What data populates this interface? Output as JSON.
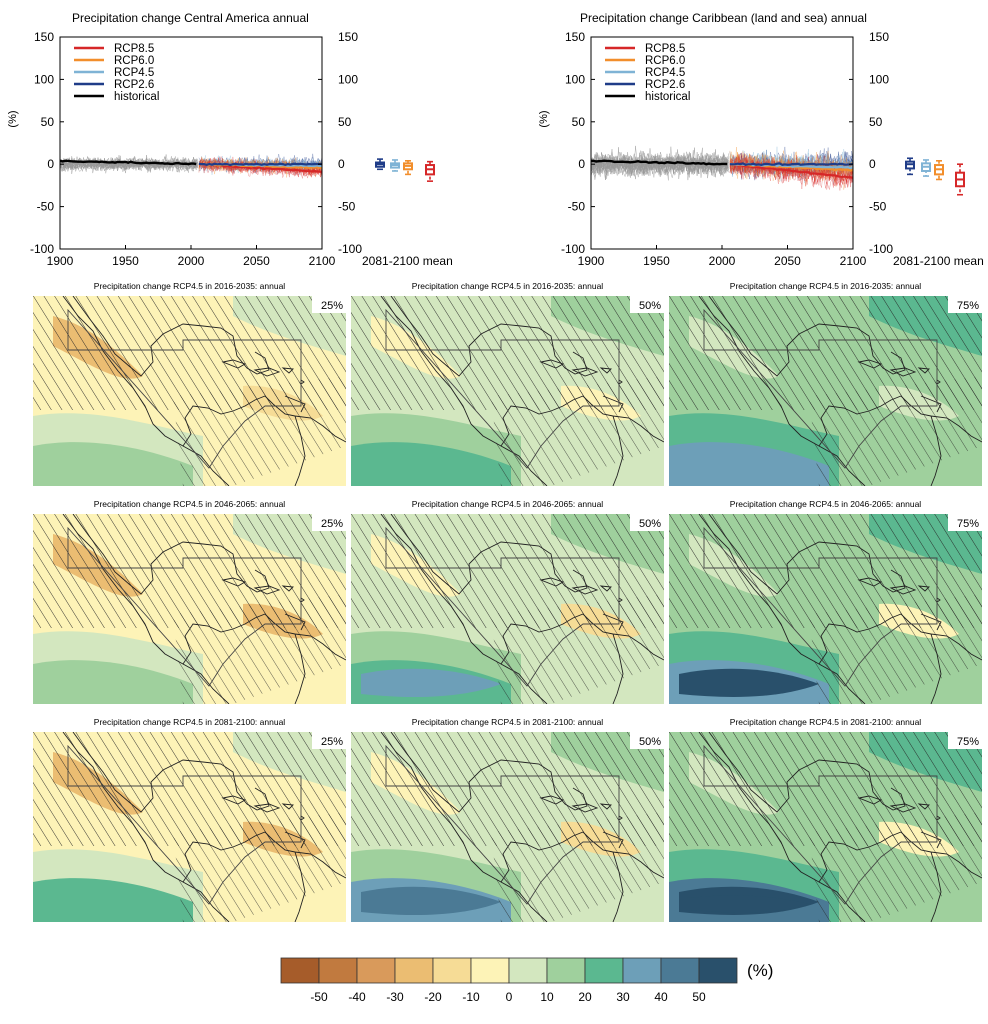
{
  "chart_data": [
    {
      "type": "line",
      "title": "Precipitation change Central America annual",
      "ylabel": "(%)",
      "xlim": [
        1900,
        2100
      ],
      "ylim": [
        -100,
        150
      ],
      "x_ticks": [
        1900,
        1950,
        2000,
        2050,
        2100
      ],
      "y_ticks": [
        -100,
        -50,
        0,
        50,
        100,
        150
      ],
      "legend_placement": "top-left",
      "series": [
        {
          "name": "RCP8.5",
          "color": "#d62728"
        },
        {
          "name": "RCP6.0",
          "color": "#f28e2b"
        },
        {
          "name": "RCP4.5",
          "color": "#7fb3d5"
        },
        {
          "name": "RCP2.6",
          "color": "#1f3c88"
        },
        {
          "name": "historical",
          "color": "#000000"
        }
      ],
      "mean_label": "2081-2100 mean",
      "boxplots": [
        {
          "scenario": "RCP2.6",
          "color": "#1f3c88",
          "median": 0,
          "q1": -3,
          "q3": 2,
          "min": -6,
          "max": 6
        },
        {
          "scenario": "RCP4.5",
          "color": "#7fb3d5",
          "median": -1,
          "q1": -4,
          "q3": 1,
          "min": -8,
          "max": 5
        },
        {
          "scenario": "RCP6.0",
          "color": "#f28e2b",
          "median": -2,
          "q1": -6,
          "q3": 1,
          "min": -12,
          "max": 4
        },
        {
          "scenario": "RCP8.5",
          "color": "#d62728",
          "median": -6,
          "q1": -12,
          "q3": -1,
          "min": -20,
          "max": 3
        }
      ]
    },
    {
      "type": "line",
      "title": "Precipitation change Caribbean (land and sea) annual",
      "ylabel": "(%)",
      "xlim": [
        1900,
        2100
      ],
      "ylim": [
        -100,
        150
      ],
      "x_ticks": [
        1900,
        1950,
        2000,
        2050,
        2100
      ],
      "y_ticks": [
        -100,
        -50,
        0,
        50,
        100,
        150
      ],
      "legend_placement": "top-left",
      "series": [
        {
          "name": "RCP8.5",
          "color": "#d62728"
        },
        {
          "name": "RCP6.0",
          "color": "#f28e2b"
        },
        {
          "name": "RCP4.5",
          "color": "#7fb3d5"
        },
        {
          "name": "RCP2.6",
          "color": "#1f3c88"
        },
        {
          "name": "historical",
          "color": "#000000"
        }
      ],
      "mean_label": "2081-2100 mean",
      "boxplots": [
        {
          "scenario": "RCP2.6",
          "color": "#1f3c88",
          "median": 0,
          "q1": -5,
          "q3": 3,
          "min": -12,
          "max": 7
        },
        {
          "scenario": "RCP4.5",
          "color": "#7fb3d5",
          "median": -3,
          "q1": -8,
          "q3": 1,
          "min": -14,
          "max": 5
        },
        {
          "scenario": "RCP6.0",
          "color": "#f28e2b",
          "median": -6,
          "q1": -12,
          "q3": -1,
          "min": -18,
          "max": 4
        },
        {
          "scenario": "RCP8.5",
          "color": "#d62728",
          "median": -18,
          "q1": -26,
          "q3": -10,
          "min": -36,
          "max": 0
        }
      ]
    },
    {
      "type": "heatmap",
      "maps": [
        {
          "title": "Precipitation change RCP4.5 in 2016-2035: annual",
          "percentile": "25%",
          "dominant_change": -10
        },
        {
          "title": "Precipitation change RCP4.5 in 2016-2035: annual",
          "percentile": "50%",
          "dominant_change": 0
        },
        {
          "title": "Precipitation change RCP4.5 in 2016-2035: annual",
          "percentile": "75%",
          "dominant_change": 10
        },
        {
          "title": "Precipitation change RCP4.5 in 2046-2065: annual",
          "percentile": "25%",
          "dominant_change": -10
        },
        {
          "title": "Precipitation change RCP4.5 in 2046-2065: annual",
          "percentile": "50%",
          "dominant_change": 0
        },
        {
          "title": "Precipitation change RCP4.5 in 2046-2065: annual",
          "percentile": "75%",
          "dominant_change": 10
        },
        {
          "title": "Precipitation change RCP4.5 in 2081-2100: annual",
          "percentile": "25%",
          "dominant_change": -10
        },
        {
          "title": "Precipitation change RCP4.5 in 2081-2100: annual",
          "percentile": "50%",
          "dominant_change": 0
        },
        {
          "title": "Precipitation change RCP4.5 in 2081-2100: annual",
          "percentile": "75%",
          "dominant_change": 10
        }
      ],
      "colorbar": {
        "unit": "(%)",
        "ticks": [
          "-50",
          "-40",
          "-30",
          "-20",
          "-10",
          "0",
          "10",
          "20",
          "30",
          "40",
          "50"
        ],
        "colors": [
          "#a65c2a",
          "#c17a3f",
          "#d99a5b",
          "#ebbd72",
          "#f6dc96",
          "#fdf3b7",
          "#d3e7bf",
          "#9fd09d",
          "#5bb890",
          "#6d9fb8",
          "#4b7a95",
          "#29506b"
        ]
      }
    }
  ]
}
